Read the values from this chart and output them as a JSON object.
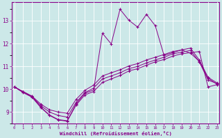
{
  "xlabel": "Windchill (Refroidissement éolien,°C)",
  "background_color": "#cce8e8",
  "line_color": "#880088",
  "grid_color": "#aadddd",
  "x_ticks": [
    0,
    1,
    2,
    3,
    4,
    5,
    6,
    7,
    8,
    9,
    10,
    11,
    12,
    13,
    14,
    15,
    16,
    17,
    18,
    19,
    20,
    21,
    22,
    23
  ],
  "y_ticks": [
    9,
    10,
    11,
    12,
    13
  ],
  "ylim": [
    8.5,
    13.8
  ],
  "xlim": [
    -0.3,
    23.3
  ],
  "series": [
    [
      10.1,
      9.85,
      9.65,
      9.2,
      8.85,
      8.65,
      8.6,
      9.3,
      9.75,
      9.9,
      10.3,
      10.45,
      10.6,
      10.8,
      10.9,
      11.05,
      11.2,
      11.3,
      11.45,
      11.55,
      11.6,
      11.65,
      10.1,
      10.2
    ],
    [
      10.1,
      9.88,
      9.68,
      9.28,
      9.0,
      8.85,
      8.78,
      9.42,
      9.85,
      10.05,
      10.45,
      10.58,
      10.72,
      10.9,
      11.0,
      11.15,
      11.28,
      11.4,
      11.55,
      11.62,
      11.7,
      11.2,
      10.4,
      10.25
    ],
    [
      10.1,
      9.9,
      9.7,
      9.35,
      9.1,
      9.0,
      8.95,
      9.55,
      9.95,
      10.18,
      10.58,
      10.72,
      10.85,
      11.02,
      11.12,
      11.28,
      11.4,
      11.52,
      11.65,
      11.72,
      11.8,
      11.28,
      10.52,
      10.28
    ],
    [
      10.1,
      9.88,
      9.68,
      9.22,
      8.87,
      8.67,
      8.62,
      9.35,
      9.82,
      9.97,
      12.45,
      11.98,
      13.5,
      13.02,
      12.72,
      13.28,
      12.78,
      11.48,
      11.6,
      11.72,
      11.58,
      11.22,
      10.48,
      10.22
    ]
  ]
}
